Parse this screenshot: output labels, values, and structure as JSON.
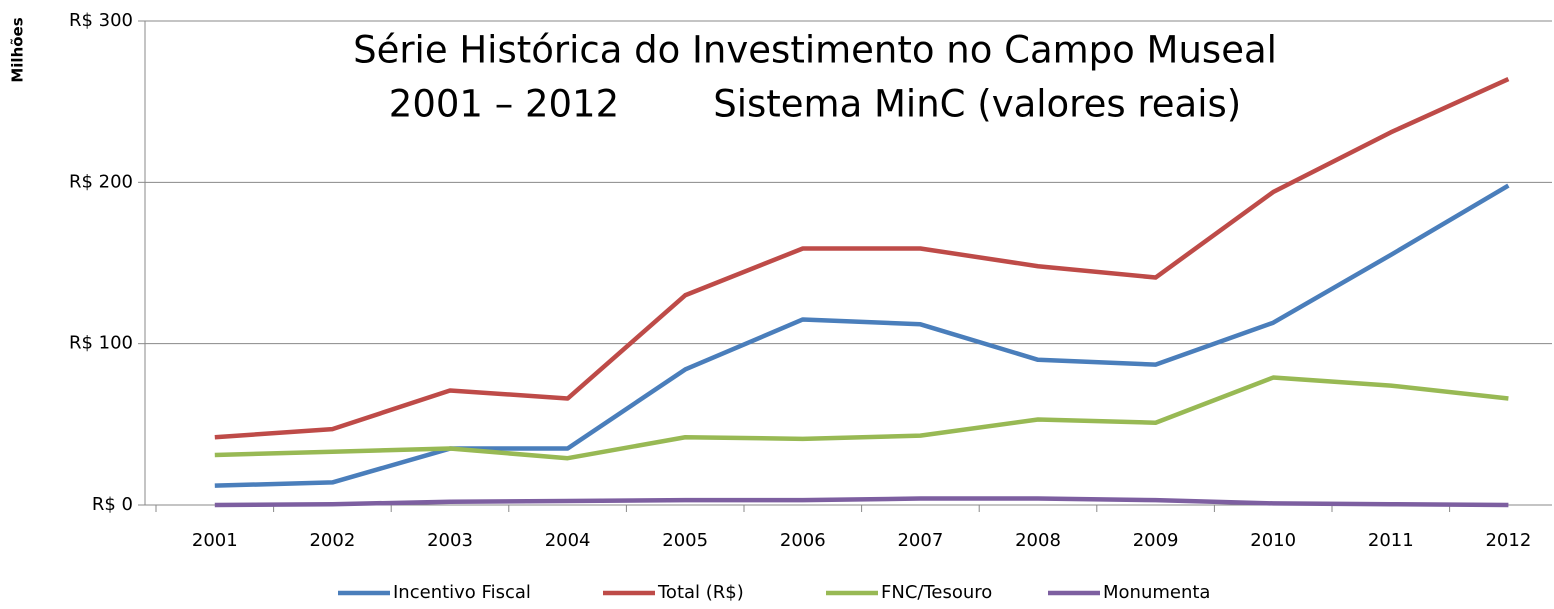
{
  "chart_data": {
    "type": "line",
    "title_lines": [
      "Série Histórica do Investimento no Campo Museal",
      "2001 – 2012        Sistema MinC (valores reais)"
    ],
    "y_label": "Milhões",
    "categories": [
      "2001",
      "2002",
      "2003",
      "2004",
      "2005",
      "2006",
      "2007",
      "2008",
      "2009",
      "2010",
      "2011",
      "2012"
    ],
    "series": [
      {
        "name": "Incentivo Fiscal",
        "color": "#4a7ebb",
        "values": [
          12,
          14,
          35,
          35,
          84,
          115,
          112,
          90,
          87,
          113,
          155,
          198
        ]
      },
      {
        "name": "Total (R$)",
        "color": "#be4b48",
        "values": [
          42,
          47,
          71,
          66,
          130,
          159,
          159,
          148,
          141,
          194,
          231,
          264
        ]
      },
      {
        "name": "FNC/Tesouro",
        "color": "#98b954",
        "values": [
          31,
          33,
          35,
          29,
          42,
          41,
          43,
          53,
          51,
          79,
          74,
          66
        ]
      },
      {
        "name": "Monumenta",
        "color": "#7d5fa0",
        "values": [
          0,
          0.5,
          2,
          2.5,
          3,
          3,
          4,
          4,
          3,
          1,
          0.5,
          0
        ]
      }
    ],
    "ylim": [
      0,
      300
    ],
    "yticks": [
      {
        "value": 0,
        "label": "R$ 0"
      },
      {
        "value": 100,
        "label": "R$ 100"
      },
      {
        "value": 200,
        "label": "R$ 200"
      },
      {
        "value": 300,
        "label": "R$ 300"
      }
    ],
    "grid": true,
    "legend": "bottom"
  }
}
